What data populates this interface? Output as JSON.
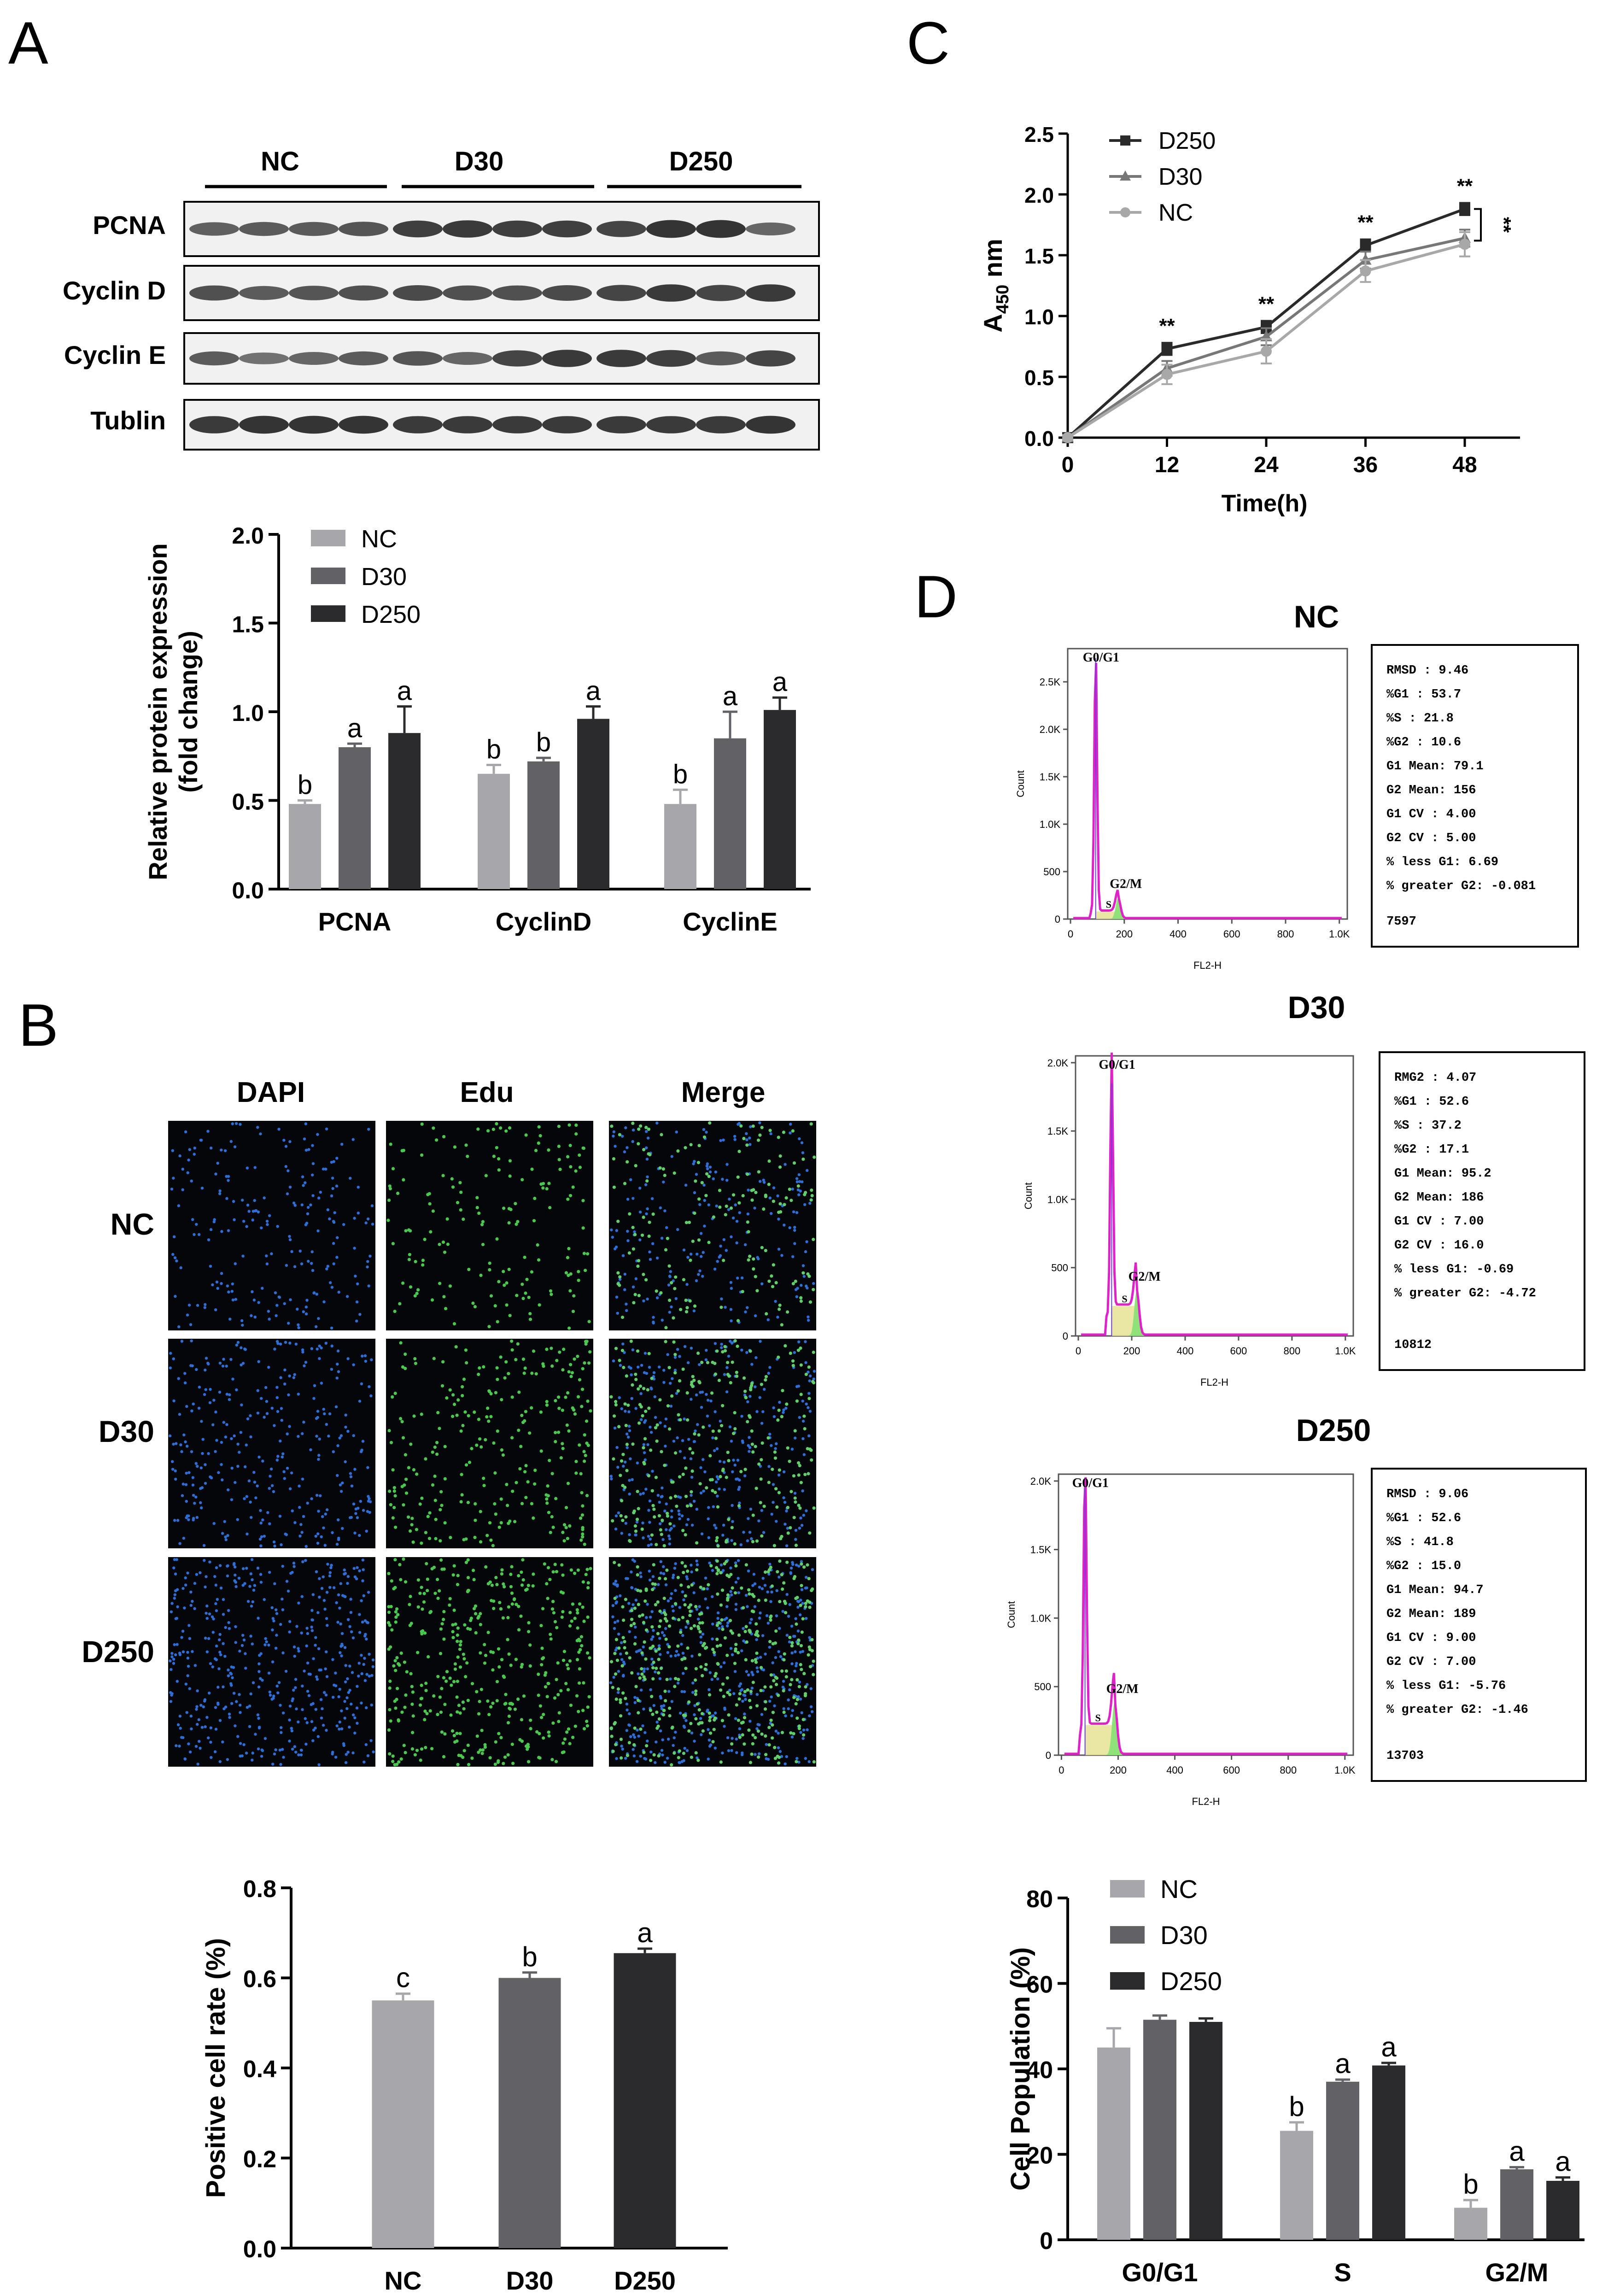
{
  "panels": {
    "A": "A",
    "B": "B",
    "C": "C",
    "D": "D"
  },
  "western_blot": {
    "groups": [
      "NC",
      "D30",
      "D250"
    ],
    "rows": [
      "PCNA",
      "Cyclin D",
      "Cyclin E",
      "Tublin"
    ]
  },
  "edu": {
    "columns": [
      "DAPI",
      "Edu",
      "Merge"
    ],
    "rows": [
      "NC",
      "D30",
      "D250"
    ]
  },
  "flow": [
    {
      "title": "NC",
      "stats": [
        "RMSD : 9.46",
        "%G1 : 53.7",
        "%S : 21.8",
        "%G2 : 10.6",
        "G1 Mean: 79.1",
        "G2 Mean: 156",
        "G1 CV : 4.00",
        "G2 CV : 5.00",
        "% less G1: 6.69",
        "% greater G2: -0.081"
      ],
      "count": "7597",
      "yticks": [
        "0",
        "500",
        "1.0K",
        "1.5K",
        "2.0K",
        "2.5K"
      ],
      "xticks": [
        "0",
        "200",
        "400",
        "600",
        "800",
        "1.0K"
      ],
      "ylabel": "Count",
      "xlabel": "FL2-H",
      "g1_label": "G0/G1",
      "s_label": "S",
      "g2_label": "G2/M"
    },
    {
      "title": "D30",
      "stats": [
        "RMG2 : 4.07",
        "%G1 : 52.6",
        "%S : 37.2",
        "%G2 : 17.1",
        "G1 Mean: 95.2",
        "G2 Mean: 186",
        "G1 CV : 7.00",
        "G2 CV : 16.0",
        "% less G1: -0.69",
        "% greater G2: -4.72"
      ],
      "count": "10812",
      "yticks": [
        "0",
        "500",
        "1.0K",
        "1.5K",
        "2.0K"
      ],
      "xticks": [
        "0",
        "200",
        "400",
        "600",
        "800",
        "1.0K"
      ],
      "ylabel": "Count",
      "xlabel": "FL2-H",
      "g1_label": "G0/G1",
      "s_label": "S",
      "g2_label": "G2/M"
    },
    {
      "title": "D250",
      "stats": [
        "RMSD : 9.06",
        "%G1 : 52.6",
        "%S : 41.8",
        "%G2 : 15.0",
        "G1 Mean: 94.7",
        "G2 Mean: 189",
        "G1 CV : 9.00",
        "G2 CV : 7.00",
        "% less G1: -5.76",
        "% greater G2: -1.46"
      ],
      "count": "13703",
      "yticks": [
        "0",
        "500",
        "1.0K",
        "1.5K",
        "2.0K"
      ],
      "xticks": [
        "0",
        "200",
        "400",
        "600",
        "800",
        "1.0K"
      ],
      "ylabel": "Count",
      "xlabel": "FL2-H",
      "g1_label": "G0/G1",
      "s_label": "S",
      "g2_label": "G2/M"
    }
  ],
  "colors": {
    "NC": "#a6a6ab",
    "D30": "#626266",
    "D250": "#2b2b2d",
    "line_NC": "#a8a8a8",
    "line_D30": "#777777",
    "line_D250": "#2a2a2a",
    "magenta": "#e020c8",
    "green_fill": "#8fe27a",
    "yellow_fill": "#e8e49a"
  },
  "chart_data": [
    {
      "id": "A-protein",
      "type": "bar",
      "categories": [
        "PCNA",
        "CyclinD",
        "CyclinE"
      ],
      "series": [
        {
          "name": "NC",
          "values": [
            0.48,
            0.65,
            0.48
          ],
          "errors": [
            0.02,
            0.05,
            0.08
          ],
          "letters": [
            "b",
            "b",
            "b"
          ]
        },
        {
          "name": "D30",
          "values": [
            0.8,
            0.72,
            0.85
          ],
          "errors": [
            0.02,
            0.02,
            0.15
          ],
          "letters": [
            "a",
            "b",
            "a"
          ]
        },
        {
          "name": "D250",
          "values": [
            0.88,
            0.96,
            1.01
          ],
          "errors": [
            0.15,
            0.07,
            0.07
          ],
          "letters": [
            "a",
            "a",
            "a"
          ]
        }
      ],
      "ylabel": "Relative protein expression\n(fold change)",
      "ylim": [
        0,
        2.0
      ],
      "yticks": [
        "0.0",
        "0.5",
        "1.0",
        "1.5",
        "2.0"
      ],
      "legend": "top-left"
    },
    {
      "id": "B-positive",
      "type": "bar",
      "categories": [
        "NC",
        "D30",
        "D250"
      ],
      "values": [
        0.55,
        0.6,
        0.655
      ],
      "errors": [
        0.015,
        0.012,
        0.01
      ],
      "letters": [
        "c",
        "b",
        "a"
      ],
      "ylabel": "Positive cell rate (%)",
      "ylim": [
        0,
        0.8
      ],
      "yticks": [
        "0.0",
        "0.2",
        "0.4",
        "0.6",
        "0.8"
      ]
    },
    {
      "id": "C-growth",
      "type": "line",
      "x": [
        0,
        12,
        24,
        36,
        48
      ],
      "series": [
        {
          "name": "D250",
          "values": [
            0.0,
            0.73,
            0.91,
            1.58,
            1.88
          ],
          "errors": [
            0.02,
            0.05,
            0.05,
            0.05,
            0.05
          ]
        },
        {
          "name": "D30",
          "values": [
            0.0,
            0.57,
            0.83,
            1.46,
            1.64
          ],
          "errors": [
            0.02,
            0.06,
            0.07,
            0.07,
            0.07
          ]
        },
        {
          "name": "NC",
          "values": [
            0.0,
            0.52,
            0.71,
            1.37,
            1.59
          ],
          "errors": [
            0.02,
            0.08,
            0.1,
            0.09,
            0.1
          ]
        }
      ],
      "significance": [
        "**",
        "**",
        "**",
        "**"
      ],
      "bracket_label": "**",
      "xlabel": "Time(h)",
      "ylabel_main": "A",
      "ylabel_sub": "450",
      "ylabel_rest": " nm",
      "xlim": [
        0,
        48
      ],
      "ylim": [
        0,
        2.5
      ],
      "xticks": [
        "0",
        "12",
        "24",
        "36",
        "48"
      ],
      "yticks": [
        "0.0",
        "0.5",
        "1.0",
        "1.5",
        "2.0",
        "2.5"
      ],
      "legend": "top-left"
    },
    {
      "id": "D-population",
      "type": "bar",
      "categories": [
        "G0/G1",
        "S",
        "G2/M"
      ],
      "series": [
        {
          "name": "NC",
          "values": [
            45.0,
            25.5,
            7.5
          ],
          "errors": [
            4.5,
            2.0,
            1.8
          ],
          "letters": [
            "",
            "b",
            "b"
          ]
        },
        {
          "name": "D30",
          "values": [
            51.5,
            37.0,
            16.5
          ],
          "errors": [
            1.0,
            0.5,
            0.5
          ],
          "letters": [
            "",
            "a",
            "a"
          ]
        },
        {
          "name": "D250",
          "values": [
            51.0,
            40.8,
            13.8
          ],
          "errors": [
            0.8,
            0.6,
            0.8
          ],
          "letters": [
            "",
            "a",
            "a"
          ]
        }
      ],
      "ylabel": "Cell Population (%)",
      "ylim": [
        0,
        80
      ],
      "yticks": [
        "0",
        "20",
        "40",
        "60",
        "80"
      ],
      "legend": "top-left"
    }
  ]
}
